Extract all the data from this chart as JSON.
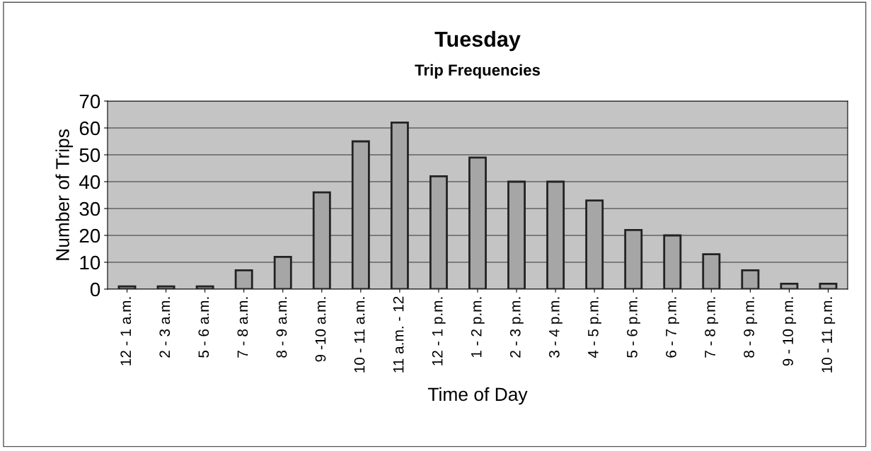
{
  "chart_data": {
    "type": "bar",
    "title": "Tuesday",
    "subtitle": "Trip Frequencies",
    "xlabel": "Time of Day",
    "ylabel": "Number of Trips",
    "categories": [
      "12 - 1 a.m.",
      "2 - 3 a.m.",
      "5 - 6 a.m.",
      "7 - 8 a.m.",
      "8 - 9 a.m.",
      "9 -10 a.m.",
      "10 - 11 a.m.",
      "11 a.m. - 12",
      "12 - 1 p.m.",
      "1 - 2 p.m.",
      "2 - 3 p.m.",
      "3 - 4 p.m.",
      "4 - 5 p.m.",
      "5 - 6 p.m.",
      "6 - 7 p.m.",
      "7 - 8 p.m.",
      "8 - 9 p.m.",
      "9 - 10 p.m.",
      "10 - 11 p.m."
    ],
    "values": [
      1,
      1,
      1,
      7,
      12,
      36,
      55,
      62,
      42,
      49,
      40,
      40,
      33,
      22,
      20,
      13,
      7,
      2,
      2
    ],
    "color": "#a6a6a6",
    "ylim": [
      0,
      70
    ],
    "yticks": [
      0,
      10,
      20,
      30,
      40,
      50,
      60,
      70
    ],
    "grid": "y",
    "legend": false
  }
}
